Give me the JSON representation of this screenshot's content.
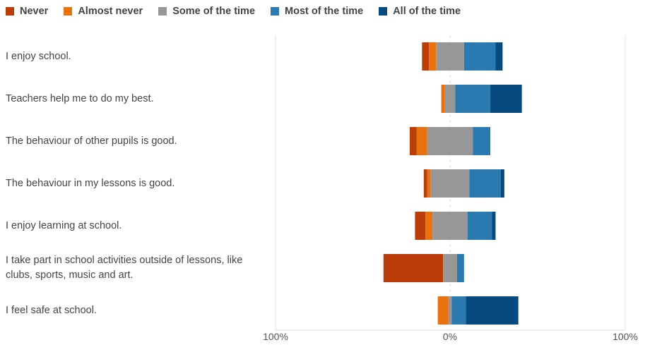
{
  "chart_data": {
    "type": "bar",
    "orientation": "horizontal",
    "stacked": "diverging",
    "legend": {
      "position": "top-left"
    },
    "series": [
      {
        "name": "Never",
        "color": "#bb3d0a",
        "side": "negative"
      },
      {
        "name": "Almost never",
        "color": "#e9720f",
        "side": "negative"
      },
      {
        "name": "Some of the time",
        "color": "#979797",
        "side": "center"
      },
      {
        "name": "Most of the time",
        "color": "#2b79b1",
        "side": "positive"
      },
      {
        "name": "All of the time",
        "color": "#064a7f",
        "side": "positive"
      }
    ],
    "categories": [
      "I enjoy school.",
      "Teachers help me to do my best.",
      "The behaviour of other pupils is good.",
      "The behaviour in my lessons is good.",
      "I enjoy learning at school.",
      "I take part in school activities outside of lessons, like clubs, sports, music and art.",
      "I feel safe at school."
    ],
    "values": [
      [
        4,
        4,
        16,
        18,
        4
      ],
      [
        0,
        2,
        6,
        20,
        18
      ],
      [
        4,
        6,
        26,
        10,
        0
      ],
      [
        2,
        2,
        22,
        18,
        2
      ],
      [
        6,
        4,
        20,
        14,
        2
      ],
      [
        34,
        0,
        8,
        4,
        0
      ],
      [
        0,
        6,
        2,
        8,
        30
      ]
    ],
    "x_ticks": [
      "100%",
      "0%",
      "100%"
    ],
    "xlim": [
      -100,
      100
    ],
    "grid": "vertical at 0 and ends"
  }
}
